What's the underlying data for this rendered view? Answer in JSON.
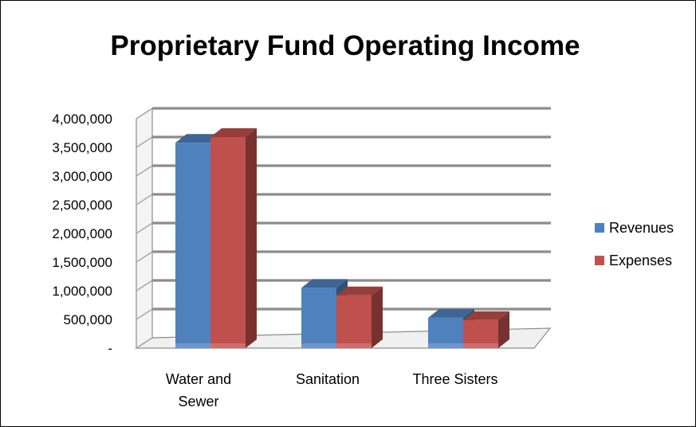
{
  "chart_data": {
    "type": "bar",
    "title": "Proprietary Fund Operating Income",
    "xlabel": "",
    "ylabel": "",
    "categories": [
      [
        "Water and",
        "Sewer"
      ],
      [
        "Sanitation"
      ],
      [
        "Three Sisters"
      ]
    ],
    "series": [
      {
        "name": "Revenues",
        "color": "#4F81BD",
        "values": [
          3580000,
          1050000,
          530000
        ]
      },
      {
        "name": "Expenses",
        "color": "#C0504D",
        "values": [
          3680000,
          920000,
          490000
        ]
      }
    ],
    "ylim": [
      0,
      4000000
    ],
    "yticks": [
      {
        "value": 0,
        "label": "-"
      },
      {
        "value": 500000,
        "label": "500,000"
      },
      {
        "value": 1000000,
        "label": "1,000,000"
      },
      {
        "value": 1500000,
        "label": "1,500,000"
      },
      {
        "value": 2000000,
        "label": "2,000,000"
      },
      {
        "value": 2500000,
        "label": "2,500,000"
      },
      {
        "value": 3000000,
        "label": "3,000,000"
      },
      {
        "value": 3500000,
        "label": "3,500,000"
      },
      {
        "value": 4000000,
        "label": "4,000,000"
      }
    ],
    "grid": true,
    "legend": "right",
    "style": "3d-clustered-column"
  }
}
